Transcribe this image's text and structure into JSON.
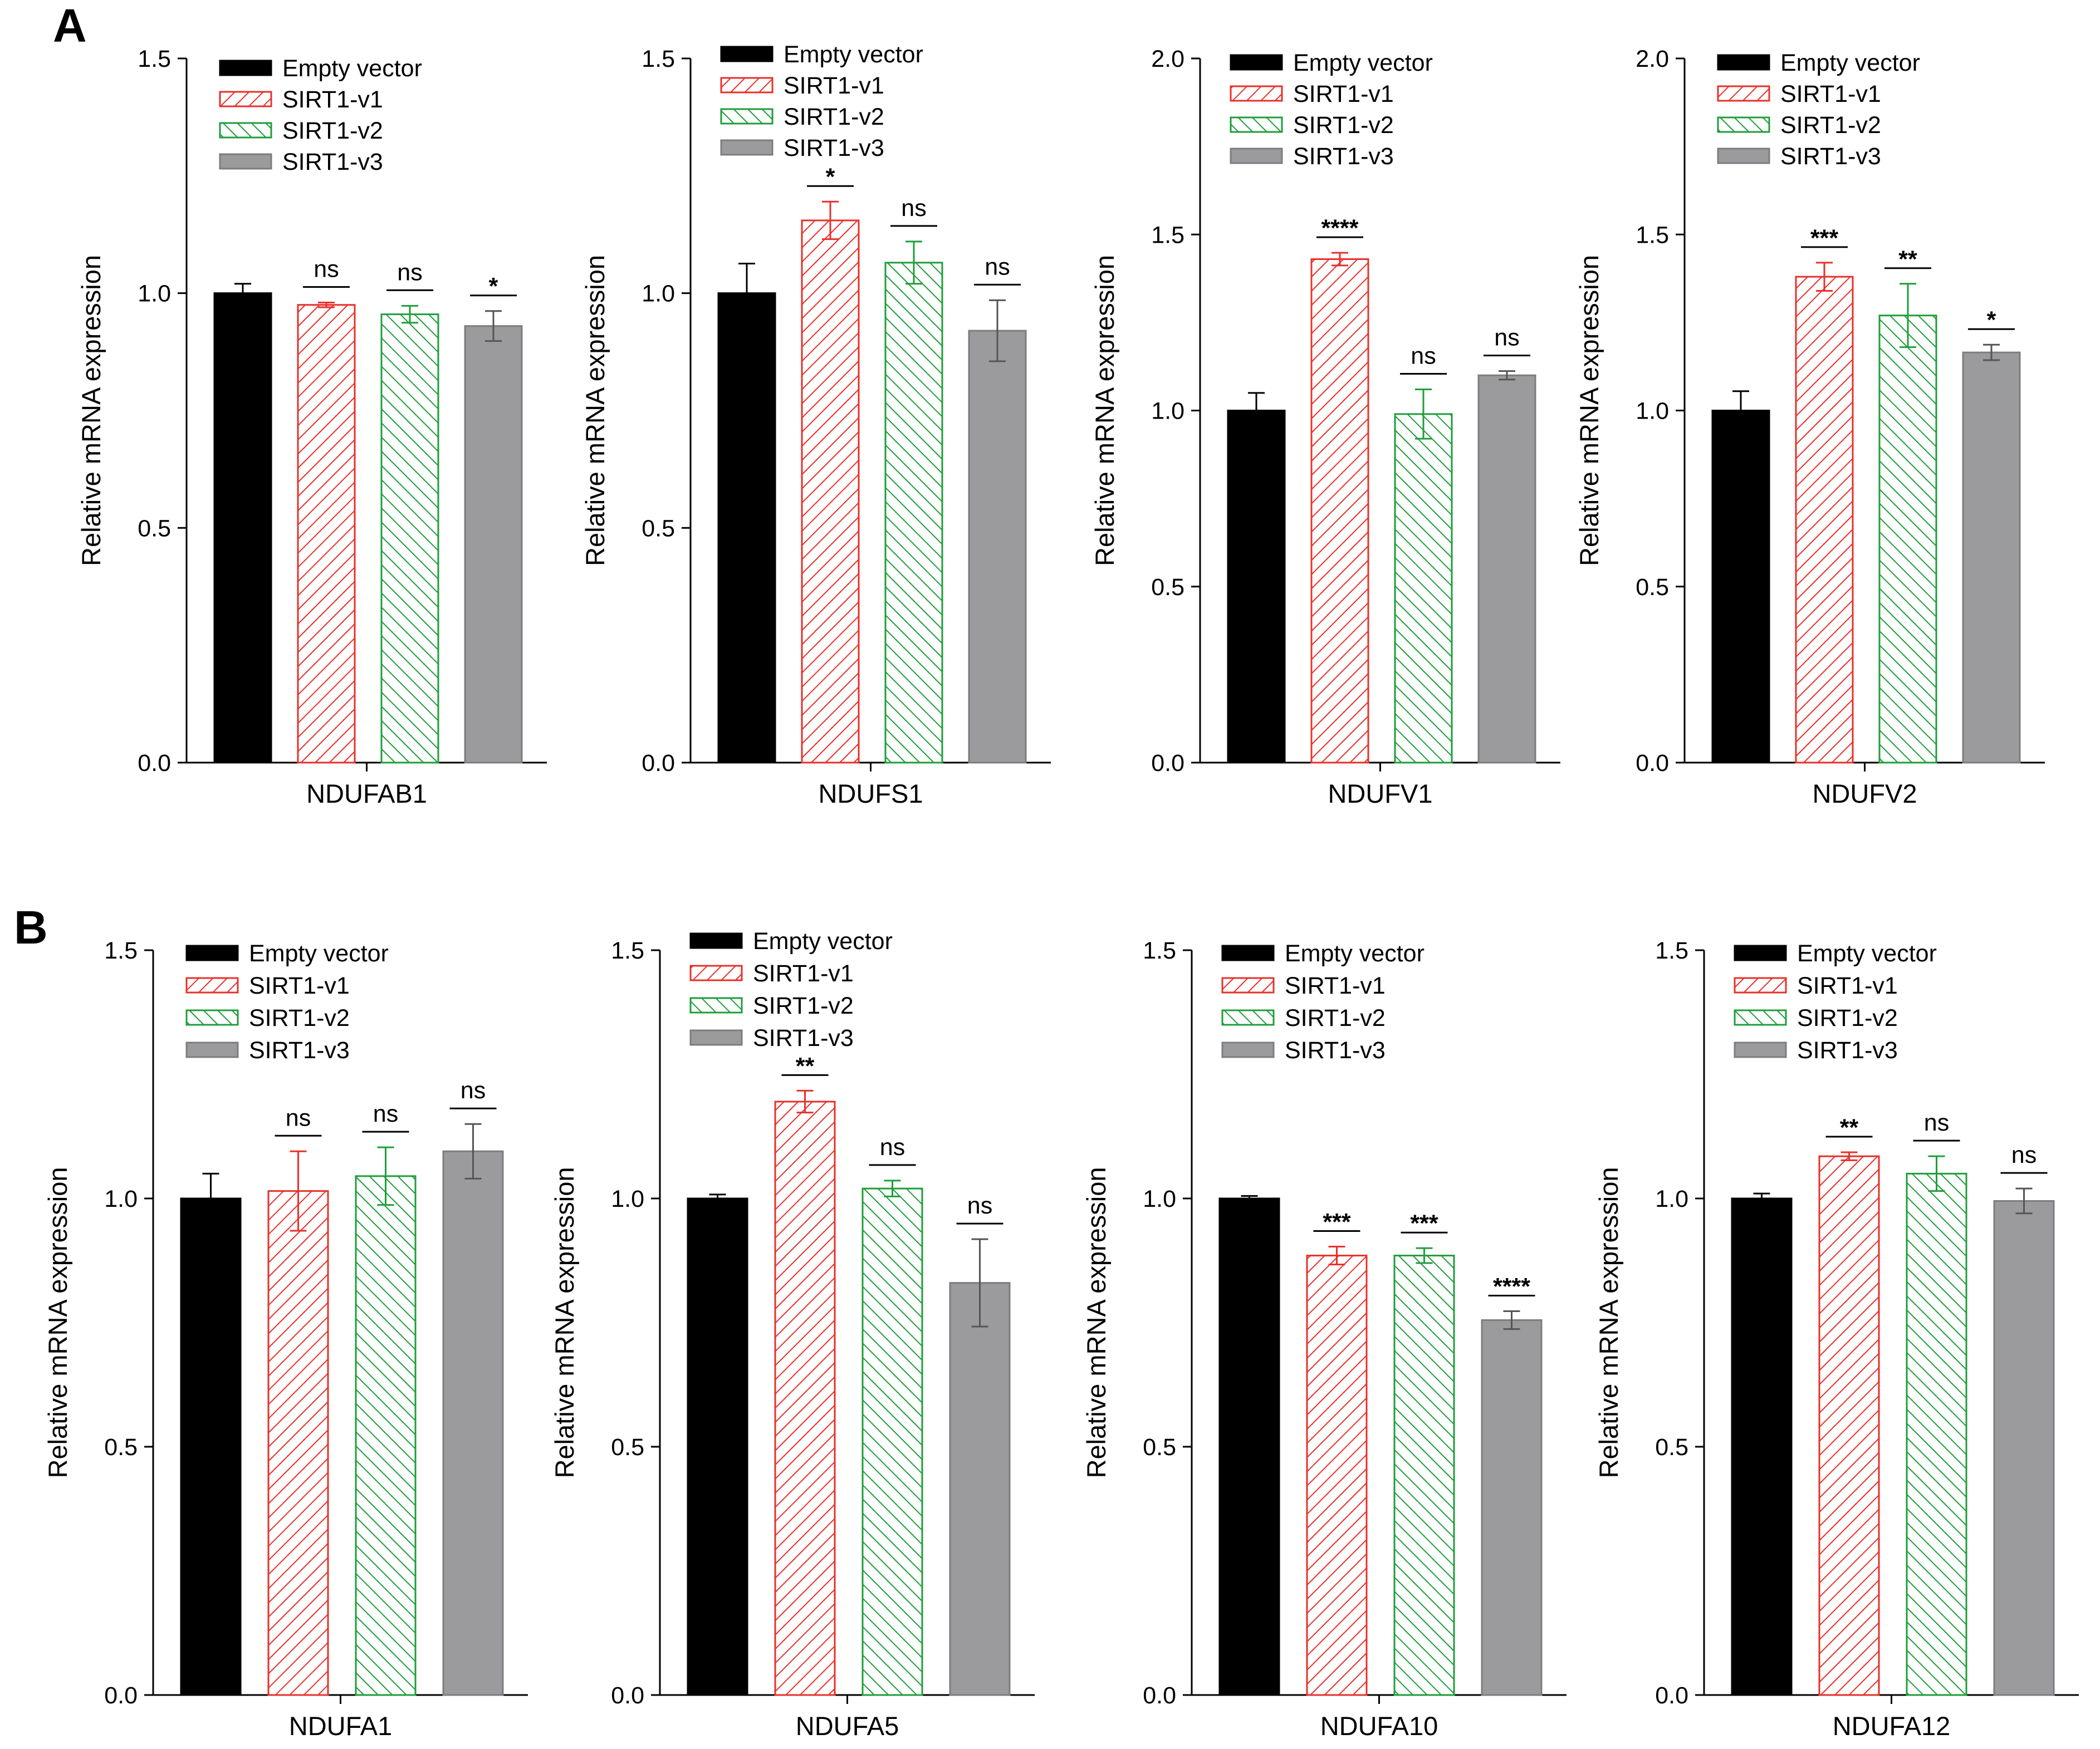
{
  "panel_labels": [
    "A",
    "B"
  ],
  "colors": {
    "empty_vector": "#000000",
    "sirt1_v1": "#e8302a",
    "sirt1_v2": "#1e9e3a",
    "sirt1_v3": "#9b9b9e",
    "axis": "#000000"
  },
  "chart_data": [
    {
      "type": "bar",
      "panel": "A",
      "category": "NDUFAB1",
      "ylabel": "Relative mRNA expression",
      "ylim": [
        0,
        1.5
      ],
      "yticks": [
        "0.0",
        "0.5",
        "1.0",
        "1.5"
      ],
      "ytick_values": [
        0,
        0.5,
        1.0,
        1.5
      ],
      "legend": [
        "Empty vector",
        "SIRT1-v1",
        "SIRT1-v2",
        "SIRT1-v3"
      ],
      "series": [
        {
          "name": "Empty vector",
          "value": 1.0,
          "error": 0.02,
          "sig": ""
        },
        {
          "name": "SIRT1-v1",
          "value": 0.975,
          "error": 0.005,
          "sig": "ns"
        },
        {
          "name": "SIRT1-v2",
          "value": 0.955,
          "error": 0.018,
          "sig": "ns"
        },
        {
          "name": "SIRT1-v3",
          "value": 0.93,
          "error": 0.032,
          "sig": "*"
        }
      ]
    },
    {
      "type": "bar",
      "panel": "A",
      "category": "NDUFS1",
      "ylabel": "Relative mRNA expression",
      "ylim": [
        0,
        1.5
      ],
      "yticks": [
        "0.0",
        "0.5",
        "1.0",
        "1.5"
      ],
      "ytick_values": [
        0,
        0.5,
        1.0,
        1.5
      ],
      "legend": [
        "Empty vector",
        "SIRT1-v1",
        "SIRT1-v2",
        "SIRT1-v3"
      ],
      "series": [
        {
          "name": "Empty vector",
          "value": 1.0,
          "error": 0.063,
          "sig": ""
        },
        {
          "name": "SIRT1-v1",
          "value": 1.155,
          "error": 0.04,
          "sig": "*"
        },
        {
          "name": "SIRT1-v2",
          "value": 1.065,
          "error": 0.045,
          "sig": "ns"
        },
        {
          "name": "SIRT1-v3",
          "value": 0.92,
          "error": 0.065,
          "sig": "ns"
        }
      ]
    },
    {
      "type": "bar",
      "panel": "A",
      "category": "NDUFV1",
      "ylabel": "Relative mRNA expression",
      "ylim": [
        0,
        2.0
      ],
      "yticks": [
        "0.0",
        "0.5",
        "1.0",
        "1.5",
        "2.0"
      ],
      "ytick_values": [
        0,
        0.5,
        1.0,
        1.5,
        2.0
      ],
      "legend": [
        "Empty vector",
        "SIRT1-v1",
        "SIRT1-v2",
        "SIRT1-v3"
      ],
      "series": [
        {
          "name": "Empty vector",
          "value": 1.0,
          "error": 0.05,
          "sig": ""
        },
        {
          "name": "SIRT1-v1",
          "value": 1.43,
          "error": 0.018,
          "sig": "****"
        },
        {
          "name": "SIRT1-v2",
          "value": 0.99,
          "error": 0.07,
          "sig": "ns"
        },
        {
          "name": "SIRT1-v3",
          "value": 1.1,
          "error": 0.012,
          "sig": "ns"
        }
      ]
    },
    {
      "type": "bar",
      "panel": "A",
      "category": "NDUFV2",
      "ylabel": "Relative mRNA expression",
      "ylim": [
        0,
        2.0
      ],
      "yticks": [
        "0.0",
        "0.5",
        "1.0",
        "1.5",
        "2.0"
      ],
      "ytick_values": [
        0,
        0.5,
        1.0,
        1.5,
        2.0
      ],
      "legend": [
        "Empty vector",
        "SIRT1-v1",
        "SIRT1-v2",
        "SIRT1-v3"
      ],
      "series": [
        {
          "name": "Empty vector",
          "value": 1.0,
          "error": 0.055,
          "sig": ""
        },
        {
          "name": "SIRT1-v1",
          "value": 1.38,
          "error": 0.04,
          "sig": "***"
        },
        {
          "name": "SIRT1-v2",
          "value": 1.27,
          "error": 0.09,
          "sig": "**"
        },
        {
          "name": "SIRT1-v3",
          "value": 1.165,
          "error": 0.022,
          "sig": "*"
        }
      ]
    },
    {
      "type": "bar",
      "panel": "B",
      "category": "NDUFA1",
      "ylabel": "Relative mRNA expression",
      "ylim": [
        0,
        1.5
      ],
      "yticks": [
        "0.0",
        "0.5",
        "1.0",
        "1.5"
      ],
      "ytick_values": [
        0,
        0.5,
        1.0,
        1.5
      ],
      "legend": [
        "Empty vector",
        "SIRT1-v1",
        "SIRT1-v2",
        "SIRT1-v3"
      ],
      "series": [
        {
          "name": "Empty vector",
          "value": 1.0,
          "error": 0.05,
          "sig": ""
        },
        {
          "name": "SIRT1-v1",
          "value": 1.015,
          "error": 0.08,
          "sig": "ns"
        },
        {
          "name": "SIRT1-v2",
          "value": 1.045,
          "error": 0.058,
          "sig": "ns"
        },
        {
          "name": "SIRT1-v3",
          "value": 1.095,
          "error": 0.055,
          "sig": "ns"
        }
      ]
    },
    {
      "type": "bar",
      "panel": "B",
      "category": "NDUFA5",
      "ylabel": "Relative mRNA expression",
      "ylim": [
        0,
        1.5
      ],
      "yticks": [
        "0.0",
        "0.5",
        "1.0",
        "1.5"
      ],
      "ytick_values": [
        0,
        0.5,
        1.0,
        1.5
      ],
      "legend": [
        "Empty vector",
        "SIRT1-v1",
        "SIRT1-v2",
        "SIRT1-v3"
      ],
      "series": [
        {
          "name": "Empty vector",
          "value": 1.0,
          "error": 0.008,
          "sig": ""
        },
        {
          "name": "SIRT1-v1",
          "value": 1.195,
          "error": 0.022,
          "sig": "**"
        },
        {
          "name": "SIRT1-v2",
          "value": 1.02,
          "error": 0.016,
          "sig": "ns"
        },
        {
          "name": "SIRT1-v3",
          "value": 0.83,
          "error": 0.088,
          "sig": "ns"
        }
      ]
    },
    {
      "type": "bar",
      "panel": "B",
      "category": "NDUFA10",
      "ylabel": "Relative mRNA expression",
      "ylim": [
        0,
        1.5
      ],
      "yticks": [
        "0.0",
        "0.5",
        "1.0",
        "1.5"
      ],
      "ytick_values": [
        0,
        0.5,
        1.0,
        1.5
      ],
      "legend": [
        "Empty vector",
        "SIRT1-v1",
        "SIRT1-v2",
        "SIRT1-v3"
      ],
      "series": [
        {
          "name": "Empty vector",
          "value": 1.0,
          "error": 0.005,
          "sig": ""
        },
        {
          "name": "SIRT1-v1",
          "value": 0.885,
          "error": 0.018,
          "sig": "***"
        },
        {
          "name": "SIRT1-v2",
          "value": 0.885,
          "error": 0.015,
          "sig": "***"
        },
        {
          "name": "SIRT1-v3",
          "value": 0.755,
          "error": 0.018,
          "sig": "****"
        }
      ]
    },
    {
      "type": "bar",
      "panel": "B",
      "category": "NDUFA12",
      "ylabel": "Relative mRNA expression",
      "ylim": [
        0,
        1.5
      ],
      "yticks": [
        "0.0",
        "0.5",
        "1.0",
        "1.5"
      ],
      "ytick_values": [
        0,
        0.5,
        1.0,
        1.5
      ],
      "legend": [
        "Empty vector",
        "SIRT1-v1",
        "SIRT1-v2",
        "SIRT1-v3"
      ],
      "series": [
        {
          "name": "Empty vector",
          "value": 1.0,
          "error": 0.01,
          "sig": ""
        },
        {
          "name": "SIRT1-v1",
          "value": 1.085,
          "error": 0.008,
          "sig": "**"
        },
        {
          "name": "SIRT1-v2",
          "value": 1.05,
          "error": 0.035,
          "sig": "ns"
        },
        {
          "name": "SIRT1-v3",
          "value": 0.995,
          "error": 0.025,
          "sig": "ns"
        }
      ]
    }
  ]
}
